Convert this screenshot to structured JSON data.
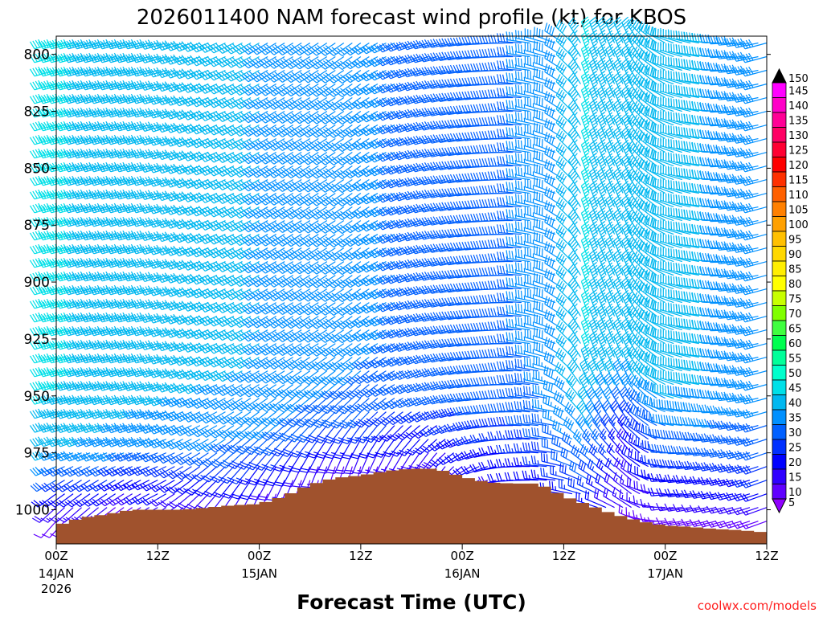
{
  "chart_data": {
    "type": "wind-barb-profile",
    "title": "2026011400 NAM forecast wind profile (kt) for KBOS",
    "xlabel": "Forecast Time (UTC)",
    "ylabel": "",
    "credit": "coolwx.com/models",
    "x_range_hours": [
      0,
      84
    ],
    "y_range_hpa": [
      792,
      1015
    ],
    "y_ticks": [
      800,
      825,
      850,
      875,
      900,
      925,
      950,
      975,
      1000
    ],
    "x_ticks": [
      {
        "hour": 0,
        "label": "00Z",
        "sub": "14JAN",
        "sub2": "2026"
      },
      {
        "hour": 12,
        "label": "12Z",
        "sub": "",
        "sub2": ""
      },
      {
        "hour": 24,
        "label": "00Z",
        "sub": "15JAN",
        "sub2": ""
      },
      {
        "hour": 36,
        "label": "12Z",
        "sub": "",
        "sub2": ""
      },
      {
        "hour": 48,
        "label": "00Z",
        "sub": "16JAN",
        "sub2": ""
      },
      {
        "hour": 60,
        "label": "12Z",
        "sub": "",
        "sub2": ""
      },
      {
        "hour": 72,
        "label": "00Z",
        "sub": "17JAN",
        "sub2": ""
      },
      {
        "hour": 84,
        "label": "12Z",
        "sub": "",
        "sub2": ""
      }
    ],
    "surface_pressure": {
      "hours": [
        0,
        3,
        6,
        9,
        12,
        15,
        18,
        21,
        24,
        27,
        30,
        33,
        36,
        39,
        42,
        45,
        48,
        51,
        54,
        57,
        60,
        63,
        66,
        69,
        72,
        75,
        78,
        81,
        84
      ],
      "hpa": [
        1007,
        1003.5,
        1002,
        1000,
        1000,
        1000,
        999,
        998,
        997.5,
        994,
        989,
        986,
        985,
        983,
        982,
        982,
        985.5,
        988,
        988.5,
        988.5,
        994,
        998,
        1002,
        1005,
        1007,
        1007.5,
        1008.5,
        1009,
        1010
      ]
    },
    "wind_levels_hpa": [
      795,
      801,
      807,
      813,
      819,
      825,
      831,
      837,
      843,
      849,
      855,
      861,
      867,
      873,
      879,
      885,
      891,
      897,
      903,
      909,
      915,
      921,
      927,
      933,
      939,
      945,
      951,
      957,
      963,
      969,
      975,
      981,
      987,
      993,
      999,
      1005,
      1011
    ],
    "wind_keyframes": [
      {
        "hour": 0,
        "low": {
          "dir": 220,
          "spd": 10
        },
        "mid": {
          "dir": 250,
          "spd": 40
        },
        "high": {
          "dir": 255,
          "spd": 46
        }
      },
      {
        "hour": 12,
        "low": {
          "dir": 240,
          "spd": 15
        },
        "mid": {
          "dir": 250,
          "spd": 38
        },
        "high": {
          "dir": 255,
          "spd": 42
        }
      },
      {
        "hour": 24,
        "low": {
          "dir": 200,
          "spd": 12
        },
        "mid": {
          "dir": 230,
          "spd": 35
        },
        "high": {
          "dir": 240,
          "spd": 40
        }
      },
      {
        "hour": 36,
        "low": {
          "dir": 190,
          "spd": 10
        },
        "mid": {
          "dir": 225,
          "spd": 33
        },
        "high": {
          "dir": 235,
          "spd": 37
        }
      },
      {
        "hour": 45,
        "low": {
          "dir": 210,
          "spd": 15
        },
        "mid": {
          "dir": 250,
          "spd": 30
        },
        "high": {
          "dir": 255,
          "spd": 33
        }
      },
      {
        "hour": 54,
        "low": {
          "dir": 265,
          "spd": 20
        },
        "mid": {
          "dir": 270,
          "spd": 30
        },
        "high": {
          "dir": 270,
          "spd": 33
        }
      },
      {
        "hour": 59,
        "low": {
          "dir": 275,
          "spd": 22
        },
        "mid": {
          "dir": 280,
          "spd": 35
        },
        "high": {
          "dir": 290,
          "spd": 38
        }
      },
      {
        "hour": 63,
        "low": {
          "dir": 285,
          "spd": 25
        },
        "mid": {
          "dir": 325,
          "spd": 40
        },
        "high": {
          "dir": 340,
          "spd": 45
        }
      },
      {
        "hour": 68,
        "low": {
          "dir": 300,
          "spd": 15
        },
        "mid": {
          "dir": 320,
          "spd": 20
        },
        "high": {
          "dir": 335,
          "spd": 40
        }
      },
      {
        "hour": 73,
        "low": {
          "dir": 260,
          "spd": 12
        },
        "mid": {
          "dir": 270,
          "spd": 30
        },
        "high": {
          "dir": 290,
          "spd": 42
        }
      },
      {
        "hour": 84,
        "low": {
          "dir": 250,
          "spd": 10
        },
        "mid": {
          "dir": 250,
          "spd": 30
        },
        "high": {
          "dir": 255,
          "spd": 38
        }
      }
    ],
    "colorbar": {
      "labels": [
        "150",
        "145",
        "140",
        "135",
        "130",
        "125",
        "120",
        "115",
        "110",
        "105",
        "100",
        "95",
        "90",
        "85",
        "80",
        "75",
        "70",
        "65",
        "60",
        "55",
        "50",
        "45",
        "40",
        "35",
        "30",
        "25",
        "20",
        "15",
        "10",
        "5"
      ],
      "values": [
        150,
        145,
        140,
        135,
        130,
        125,
        120,
        115,
        110,
        105,
        100,
        95,
        90,
        85,
        80,
        75,
        70,
        65,
        60,
        55,
        50,
        45,
        40,
        35,
        30,
        25,
        20,
        15,
        10,
        5
      ],
      "colors": [
        "#000000",
        "#ff00ff",
        "#ff00c8",
        "#ff0096",
        "#ff0064",
        "#ff0032",
        "#ff0000",
        "#ff3000",
        "#ff6000",
        "#ff8000",
        "#ffa000",
        "#ffc000",
        "#ffd800",
        "#ffee00",
        "#ffff00",
        "#c8ff00",
        "#80ff00",
        "#40ff40",
        "#00ff50",
        "#00ff9a",
        "#00ffcc",
        "#00e0e8",
        "#00b8f0",
        "#0090ff",
        "#0060ff",
        "#0030ff",
        "#0000ff",
        "#3000ff",
        "#6000ff",
        "#9000ff"
      ]
    },
    "terrain_color": "#a0522d"
  }
}
